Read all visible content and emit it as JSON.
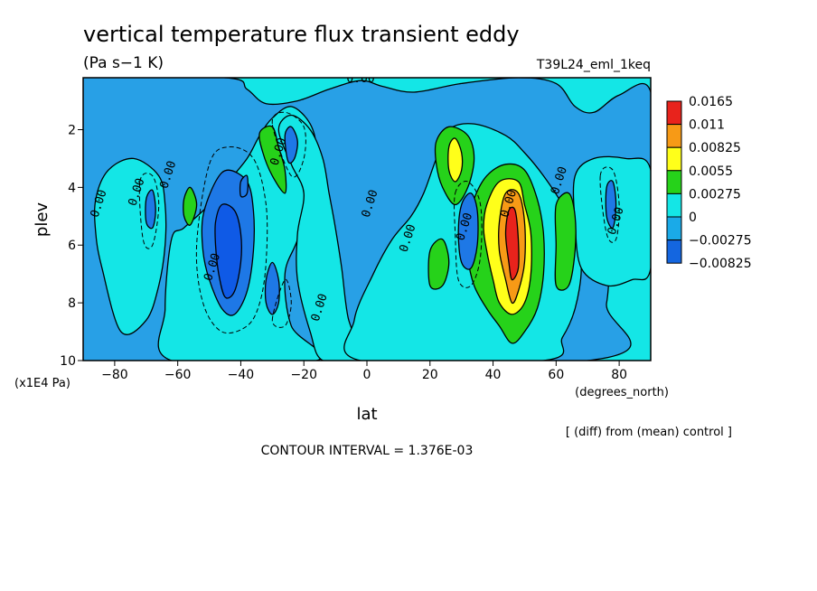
{
  "chart_data": {
    "type": "heatmap",
    "title": "vertical temperature flux transient eddy",
    "units": "(Pa s−1 K)",
    "run_label": "T39L24_eml_1keq",
    "xlabel": "lat",
    "xunits": "(degrees_north)",
    "ylabel": "plev",
    "yunits": "(x1E4 Pa)",
    "xlim": [
      -90,
      90
    ],
    "ylim": [
      10,
      0.2
    ],
    "x_ticks": [
      -80,
      -60,
      -40,
      -20,
      0,
      20,
      40,
      60,
      80
    ],
    "x_tick_labels": [
      "−80",
      "−60",
      "−40",
      "−20",
      "0",
      "20",
      "40",
      "60",
      "80"
    ],
    "y_ticks": [
      2,
      4,
      6,
      8,
      10
    ],
    "y_tick_labels": [
      "2",
      "4",
      "6",
      "8",
      "10"
    ],
    "contour_interval_text": "CONTOUR INTERVAL = 1.376E-03",
    "note": "[ (diff) from (mean) control ]",
    "contour_label": "0.00",
    "legend": {
      "placement": "right",
      "levels": [
        "0.0165",
        "0.011",
        "0.00825",
        "0.0055",
        "0.00275",
        "0",
        "−0.00275",
        "−0.00825"
      ],
      "colors": [
        "#e8231c",
        "#f79a16",
        "#ffff1a",
        "#26d21a",
        "#14e6e6",
        "#1aaae8",
        "#1466e0"
      ],
      "level_colors": {
        "lt_-0.00825": "#0f5ae6",
        "-0.00825_-0.00275": "#1e78e6",
        "-0.00275_0": "#28a0e6",
        "0_0.00275": "#14e6e6",
        "0.00275_0.0055": "#26d21a",
        "0.0055_0.00825": "#ffff1a",
        "0.00825_0.011": "#f79a16",
        "gt_0.011": "#e8231c"
      }
    },
    "regions": [
      {
        "level": "-0.00275_0",
        "points": [
          [
            -90,
            0.2
          ],
          [
            -45,
            0.2
          ],
          [
            -38,
            0.6
          ],
          [
            -32,
            1.1
          ],
          [
            -22,
            1.0
          ],
          [
            -12,
            0.6
          ],
          [
            -2,
            0.3
          ],
          [
            5,
            0.5
          ],
          [
            15,
            0.7
          ],
          [
            30,
            0.4
          ],
          [
            48,
            0.2
          ],
          [
            60,
            0.4
          ],
          [
            66,
            1.2
          ],
          [
            72,
            1.4
          ],
          [
            80,
            0.8
          ],
          [
            90,
            0.7
          ],
          [
            90,
            4.8
          ],
          [
            84,
            5.0
          ],
          [
            78,
            5.3
          ],
          [
            76,
            8.0
          ],
          [
            70,
            10
          ],
          [
            -90,
            10
          ]
        ]
      },
      {
        "level": "0_0.00275",
        "points": [
          [
            -62,
            5.8
          ],
          [
            -58,
            5.4
          ],
          [
            -50,
            4.6
          ],
          [
            -44,
            3.8
          ],
          [
            -38,
            3.0
          ],
          [
            -34,
            2.2
          ],
          [
            -30,
            1.6
          ],
          [
            -24,
            1.2
          ],
          [
            -18,
            1.8
          ],
          [
            -16,
            2.8
          ],
          [
            -18,
            4.2
          ],
          [
            -22,
            5.8
          ],
          [
            -26,
            7.0
          ],
          [
            -24,
            8.8
          ],
          [
            -16,
            10
          ],
          [
            -62,
            10
          ],
          [
            -64,
            8.2
          ]
        ]
      },
      {
        "level": "0_0.00275",
        "points": [
          [
            -28,
            2.0
          ],
          [
            -24,
            1.5
          ],
          [
            -18,
            2.0
          ],
          [
            -14,
            3.0
          ],
          [
            -12,
            4.2
          ],
          [
            -10,
            5.4
          ],
          [
            -8,
            6.8
          ],
          [
            -6,
            8.5
          ],
          [
            -2,
            10
          ],
          [
            -14,
            10
          ],
          [
            -18,
            9.0
          ],
          [
            -22,
            7.2
          ],
          [
            -22,
            5.6
          ],
          [
            -20,
            4.2
          ],
          [
            -24,
            3.2
          ]
        ]
      },
      {
        "level": "0_0.00275",
        "points": [
          [
            -2,
            10
          ],
          [
            -4,
            8.6
          ],
          [
            2,
            7.0
          ],
          [
            8,
            5.8
          ],
          [
            14,
            5.0
          ],
          [
            18,
            4.2
          ],
          [
            22,
            3.0
          ],
          [
            26,
            2.0
          ],
          [
            34,
            1.8
          ],
          [
            44,
            2.2
          ],
          [
            50,
            2.8
          ],
          [
            56,
            3.6
          ],
          [
            62,
            4.6
          ],
          [
            66,
            5.6
          ],
          [
            68,
            6.8
          ],
          [
            66,
            8.2
          ],
          [
            62,
            9.2
          ],
          [
            56,
            10
          ]
        ]
      },
      {
        "level": "0_0.00275",
        "points": [
          [
            -84,
            6.8
          ],
          [
            -86,
            5.6
          ],
          [
            -86,
            4.4
          ],
          [
            -82,
            3.4
          ],
          [
            -74,
            3.0
          ],
          [
            -66,
            3.6
          ],
          [
            -64,
            4.6
          ],
          [
            -64,
            6.0
          ],
          [
            -66,
            7.4
          ],
          [
            -70,
            8.6
          ],
          [
            -78,
            9.0
          ]
        ]
      },
      {
        "level": "0_0.00275",
        "points": [
          [
            66,
            3.6
          ],
          [
            72,
            3.0
          ],
          [
            82,
            3.0
          ],
          [
            90,
            3.4
          ],
          [
            90,
            6.8
          ],
          [
            84,
            7.2
          ],
          [
            76,
            7.4
          ],
          [
            68,
            6.8
          ],
          [
            66,
            5.2
          ]
        ]
      },
      {
        "level": "0.00275_0.0055",
        "points": [
          [
            -34,
            2.1
          ],
          [
            -30,
            1.9
          ],
          [
            -28,
            2.6
          ],
          [
            -26,
            3.4
          ],
          [
            -26,
            4.2
          ],
          [
            -30,
            3.6
          ],
          [
            -33,
            2.8
          ]
        ]
      },
      {
        "level": "0.00275_0.0055",
        "points": [
          [
            -58,
            4.4
          ],
          [
            -56,
            4.0
          ],
          [
            -54,
            4.6
          ],
          [
            -56,
            5.3
          ],
          [
            -58,
            5.0
          ]
        ]
      },
      {
        "level": "0.00275_0.0055",
        "points": [
          [
            22,
            2.4
          ],
          [
            26,
            1.9
          ],
          [
            32,
            2.2
          ],
          [
            34,
            3.0
          ],
          [
            32,
            4.0
          ],
          [
            28,
            4.6
          ],
          [
            24,
            4.0
          ],
          [
            22,
            3.2
          ]
        ]
      },
      {
        "level": "0.00275_0.0055",
        "points": [
          [
            20,
            6.2
          ],
          [
            24,
            5.8
          ],
          [
            26,
            6.6
          ],
          [
            24,
            7.4
          ],
          [
            20,
            7.4
          ]
        ]
      },
      {
        "level": "0.00275_0.0055",
        "points": [
          [
            34,
            4.4
          ],
          [
            38,
            3.6
          ],
          [
            44,
            3.2
          ],
          [
            50,
            3.4
          ],
          [
            54,
            4.4
          ],
          [
            56,
            5.6
          ],
          [
            56,
            7.0
          ],
          [
            54,
            8.2
          ],
          [
            50,
            9.0
          ],
          [
            46,
            9.4
          ],
          [
            42,
            8.8
          ],
          [
            38,
            8.2
          ],
          [
            34,
            7.4
          ],
          [
            32,
            6.4
          ],
          [
            32,
            5.4
          ]
        ]
      },
      {
        "level": "0.00275_0.0055",
        "points": [
          [
            60,
            4.6
          ],
          [
            64,
            4.2
          ],
          [
            66,
            5.0
          ],
          [
            66,
            6.2
          ],
          [
            64,
            7.4
          ],
          [
            60,
            7.4
          ],
          [
            60,
            6.0
          ]
        ]
      },
      {
        "level": "0.0055_0.00825",
        "points": [
          [
            26,
            2.6
          ],
          [
            28,
            2.3
          ],
          [
            30,
            2.8
          ],
          [
            30,
            3.4
          ],
          [
            28,
            3.8
          ],
          [
            26,
            3.4
          ]
        ]
      },
      {
        "level": "0.0055_0.00825",
        "points": [
          [
            38,
            4.6
          ],
          [
            42,
            3.8
          ],
          [
            48,
            3.8
          ],
          [
            50,
            4.6
          ],
          [
            52,
            5.6
          ],
          [
            52,
            7.0
          ],
          [
            50,
            8.0
          ],
          [
            46,
            8.4
          ],
          [
            42,
            8.0
          ],
          [
            40,
            7.2
          ],
          [
            38,
            6.2
          ],
          [
            37,
            5.4
          ]
        ]
      },
      {
        "level": "0.00825_0.011",
        "points": [
          [
            44,
            4.2
          ],
          [
            48,
            4.2
          ],
          [
            50,
            5.2
          ],
          [
            50,
            6.6
          ],
          [
            48,
            7.6
          ],
          [
            46,
            8.0
          ],
          [
            44,
            7.2
          ],
          [
            42,
            6.2
          ],
          [
            42,
            5.2
          ]
        ]
      },
      {
        "level": "gt_0.011",
        "points": [
          [
            45,
            4.8
          ],
          [
            47,
            4.8
          ],
          [
            48,
            5.8
          ],
          [
            48,
            6.8
          ],
          [
            46,
            7.2
          ],
          [
            45,
            6.6
          ],
          [
            44,
            5.6
          ]
        ]
      },
      {
        "level": "-0.00825_-0.00275",
        "points": [
          [
            -52,
            5.0
          ],
          [
            -48,
            3.8
          ],
          [
            -44,
            3.4
          ],
          [
            -38,
            3.8
          ],
          [
            -36,
            4.8
          ],
          [
            -36,
            6.2
          ],
          [
            -38,
            7.6
          ],
          [
            -42,
            8.4
          ],
          [
            -46,
            8.2
          ],
          [
            -50,
            7.2
          ],
          [
            -52,
            6.2
          ]
        ]
      },
      {
        "level": "lt_-0.00825",
        "points": [
          [
            -48,
            5.2
          ],
          [
            -46,
            4.6
          ],
          [
            -42,
            4.8
          ],
          [
            -40,
            5.6
          ],
          [
            -40,
            6.6
          ],
          [
            -42,
            7.6
          ],
          [
            -45,
            7.8
          ],
          [
            -47,
            7.0
          ],
          [
            -48,
            6.0
          ]
        ]
      },
      {
        "level": "-0.00825_-0.00275",
        "points": [
          [
            -32,
            7.2
          ],
          [
            -30,
            6.6
          ],
          [
            -28,
            7.2
          ],
          [
            -28,
            8.0
          ],
          [
            -30,
            8.4
          ],
          [
            -32,
            8.0
          ]
        ]
      },
      {
        "level": "-0.00825_-0.00275",
        "points": [
          [
            -26,
            2.2
          ],
          [
            -24,
            1.9
          ],
          [
            -22,
            2.4
          ],
          [
            -23,
            3.0
          ],
          [
            -25,
            3.1
          ]
        ]
      },
      {
        "level": "-0.00825_-0.00275",
        "points": [
          [
            -40,
            3.8
          ],
          [
            -38,
            3.6
          ],
          [
            -38,
            4.2
          ],
          [
            -40,
            4.3
          ]
        ]
      },
      {
        "level": "-0.00825_-0.00275",
        "points": [
          [
            30,
            4.6
          ],
          [
            33,
            4.2
          ],
          [
            35,
            4.8
          ],
          [
            35,
            6.0
          ],
          [
            33,
            6.8
          ],
          [
            30,
            6.6
          ],
          [
            29,
            5.6
          ]
        ]
      },
      {
        "level": "-0.00825_-0.00275",
        "points": [
          [
            -70,
            4.4
          ],
          [
            -68,
            4.1
          ],
          [
            -67,
            4.8
          ],
          [
            -68,
            5.4
          ],
          [
            -70,
            5.2
          ]
        ]
      },
      {
        "level": "-0.00825_-0.00275",
        "points": [
          [
            76,
            4.0
          ],
          [
            78,
            3.8
          ],
          [
            79,
            4.6
          ],
          [
            78,
            5.4
          ],
          [
            76,
            5.0
          ]
        ]
      }
    ],
    "dashed_contours": [
      {
        "points": [
          [
            -50,
            3.2
          ],
          [
            -44,
            2.6
          ],
          [
            -36,
            3.0
          ],
          [
            -32,
            4.6
          ],
          [
            -32,
            6.6
          ],
          [
            -34,
            8.0
          ],
          [
            -38,
            8.8
          ],
          [
            -46,
            9.0
          ],
          [
            -52,
            8.0
          ],
          [
            -54,
            6.0
          ]
        ]
      },
      {
        "points": [
          [
            -30,
            8.6
          ],
          [
            -26,
            7.2
          ],
          [
            -24,
            8.0
          ],
          [
            -26,
            8.8
          ]
        ]
      },
      {
        "points": [
          [
            -72,
            3.8
          ],
          [
            -68,
            3.6
          ],
          [
            -66,
            4.6
          ],
          [
            -68,
            6.0
          ],
          [
            -71,
            5.8
          ]
        ]
      },
      {
        "points": [
          [
            74,
            3.6
          ],
          [
            78,
            3.4
          ],
          [
            80,
            4.6
          ],
          [
            79,
            5.8
          ],
          [
            76,
            5.6
          ]
        ]
      },
      {
        "points": [
          [
            28,
            4.2
          ],
          [
            32,
            3.8
          ],
          [
            36,
            4.6
          ],
          [
            36,
            6.4
          ],
          [
            33,
            7.4
          ],
          [
            29,
            7.2
          ],
          [
            28,
            5.6
          ]
        ]
      },
      {
        "points": [
          [
            -30,
            1.8
          ],
          [
            -26,
            1.4
          ],
          [
            -20,
            1.9
          ],
          [
            -20,
            3.0
          ],
          [
            -24,
            3.6
          ]
        ]
      }
    ],
    "contour_label_positions": [
      [
        -2,
        0.35
      ],
      [
        -27,
        2.8
      ],
      [
        -72,
        4.2
      ],
      [
        -84,
        4.6
      ],
      [
        -62,
        3.6
      ],
      [
        -48,
        6.8
      ],
      [
        -14,
        8.2
      ],
      [
        2,
        4.6
      ],
      [
        14,
        5.8
      ],
      [
        32,
        5.4
      ],
      [
        46,
        4.6
      ],
      [
        62,
        3.8
      ],
      [
        80,
        5.2
      ]
    ]
  }
}
